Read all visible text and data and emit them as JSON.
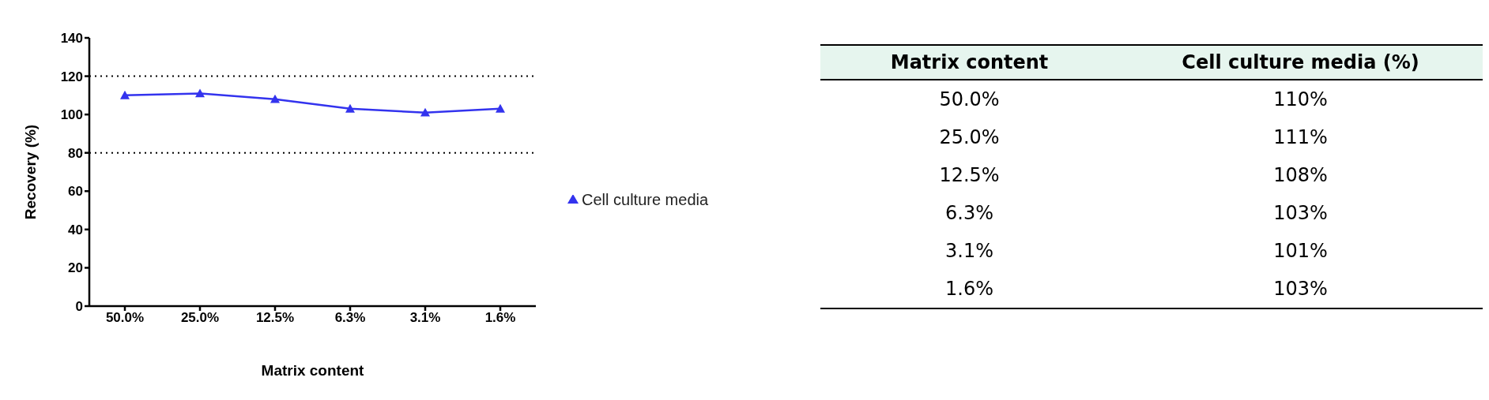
{
  "chart_data": {
    "type": "line",
    "xlabel": "Matrix content",
    "ylabel": "Recovery (%)",
    "categories": [
      "50.0%",
      "25.0%",
      "12.5%",
      "6.3%",
      "3.1%",
      "1.6%"
    ],
    "series": [
      {
        "name": "Cell culture media",
        "color": "#3333ee",
        "values": [
          110,
          111,
          108,
          103,
          101,
          103
        ]
      }
    ],
    "ylim": [
      0,
      140
    ],
    "yticks": [
      0,
      20,
      40,
      60,
      80,
      100,
      120,
      140
    ],
    "ref_lines": [
      {
        "axis": "y",
        "value": 80,
        "color": "#000000",
        "line_style": "dotted"
      },
      {
        "axis": "y",
        "value": 120,
        "color": "#000000",
        "line_style": "dotted"
      }
    ],
    "annotations": [
      "Cell culture media (%)",
      "110%",
      "111%",
      "108%",
      "103%",
      "101%",
      "103%"
    ],
    "grid": false,
    "legend": "right",
    "marker": "triangle",
    "line_style": "solid"
  }
}
